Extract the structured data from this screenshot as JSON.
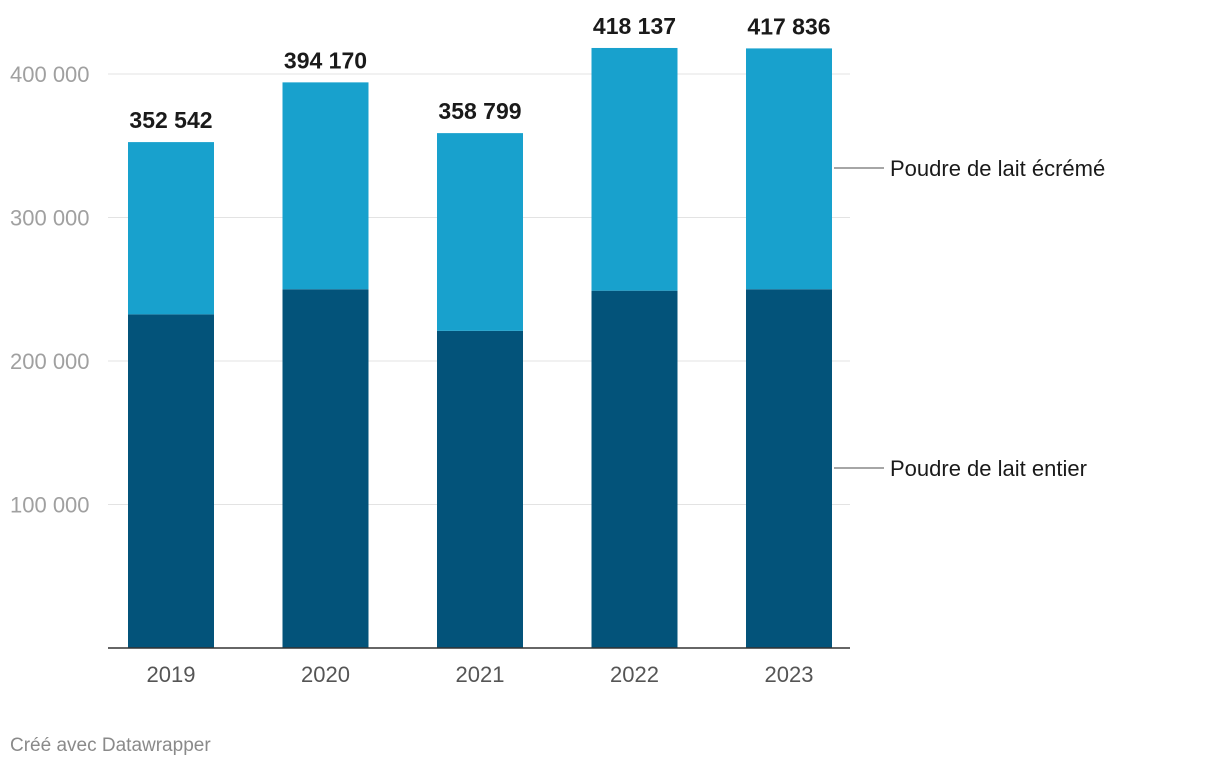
{
  "chart_data": {
    "type": "bar",
    "stacked": true,
    "categories": [
      "2019",
      "2020",
      "2021",
      "2022",
      "2023"
    ],
    "series": [
      {
        "name": "Poudre de lait entier",
        "color": "#03537a",
        "values": [
          232500,
          250000,
          221000,
          249000,
          250000
        ]
      },
      {
        "name": "Poudre de lait écrémé",
        "color": "#18a1cd",
        "values": [
          120042,
          144170,
          137799,
          169137,
          167836
        ]
      }
    ],
    "totals": [
      "352 542",
      "394 170",
      "358 799",
      "418 137",
      "417 836"
    ],
    "total_values": [
      352542,
      394170,
      358799,
      418137,
      417836
    ],
    "yticks": [
      {
        "value": 100000,
        "label": "100 000"
      },
      {
        "value": 200000,
        "label": "200 000"
      },
      {
        "value": 300000,
        "label": "300 000"
      },
      {
        "value": 400000,
        "label": "400 000"
      }
    ],
    "ylim": [
      0,
      430000
    ],
    "grid": true,
    "legend": "right, direct labels"
  },
  "footer": {
    "credit": "Créé avec Datawrapper"
  }
}
